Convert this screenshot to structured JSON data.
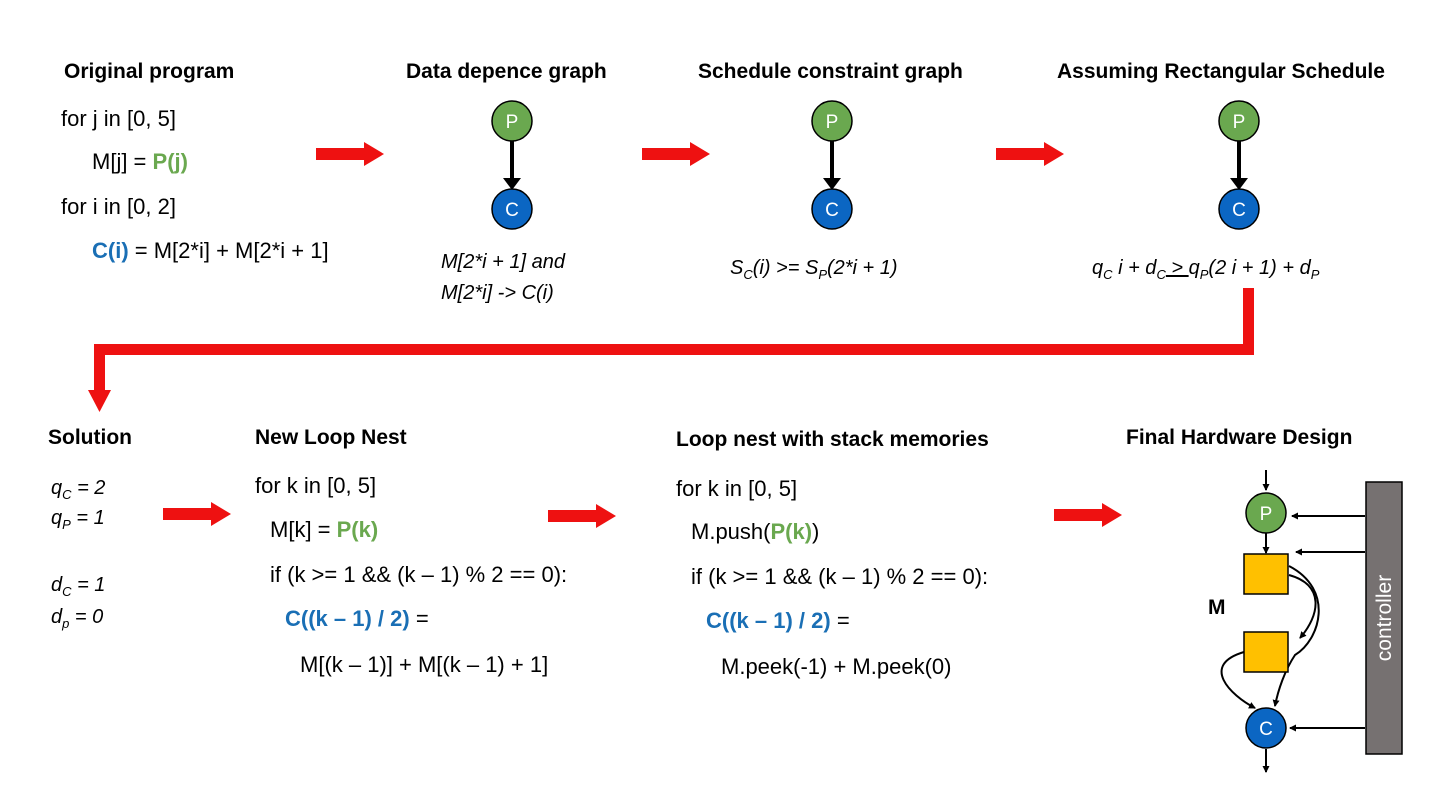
{
  "colors": {
    "arrow": "#ee1111",
    "producer": "#6aa84f",
    "consumer": "#0b66c3",
    "memory": "#ffc000",
    "controller": "#767171",
    "p_text": "#6aa84f",
    "c_text": "#1a6fb5"
  },
  "panels": {
    "original": {
      "title": "Original program",
      "l1": "for j in [0, 5]",
      "l2_pre": "M[j] = ",
      "l2_call": "P(j)",
      "l3": "for i in [0, 2]",
      "l4_call": "C(i)",
      "l4_post": " = M[2*i] + M[2*i + 1]"
    },
    "ddg": {
      "title": "Data depence graph",
      "cap1": "M[2*i + 1] and",
      "cap2": "M[2*i] -> C(i)"
    },
    "scg": {
      "title": "Schedule constraint graph",
      "cap_s": "S",
      "cap_c": "C",
      "cap_mid": "(i) >= S",
      "cap_p": "P",
      "cap_end": "(2*i + 1)"
    },
    "rect": {
      "title": "Assuming Rectangular Schedule",
      "q": "q",
      "c": "C",
      "i": " i + d",
      "ge": " > ",
      "p": "P",
      "mid": "(2 i + 1) + d"
    },
    "solution": {
      "title": "Solution",
      "qc_sub": "C",
      "qc_val": "  = 2",
      "qp_sub": "P",
      "qp_val": " = 1",
      "dc_sub": "C",
      "dc_val": " = 1",
      "dp_sub": "p",
      "dp_val": " = 0",
      "q": "q",
      "d": "d"
    },
    "newloop": {
      "title": "New Loop Nest",
      "l1": "for k in [0, 5]",
      "l2_pre": "M[k] = ",
      "l2_call": "P(k)",
      "l3": "if (k >= 1 && (k – 1) % 2 == 0):",
      "l4_call": "C((k – 1) / 2)",
      "l4_post": " =",
      "l5": "M[(k – 1)] + M[(k – 1) + 1]"
    },
    "stack": {
      "title": "Loop nest with stack memories",
      "l1": "for k in [0, 5]",
      "l2_pre": "M.push(",
      "l2_call": "P(k)",
      "l2_post": ")",
      "l3": "if (k >= 1 && (k – 1) % 2 == 0):",
      "l4_call": "C((k – 1) / 2)",
      "l4_post": " =",
      "l5": "M.peek(-1) + M.peek(0)"
    },
    "hw": {
      "title": "Final Hardware Design",
      "mem_label": "M",
      "controller": "controller"
    }
  },
  "nodes": {
    "p": "P",
    "c": "C"
  }
}
